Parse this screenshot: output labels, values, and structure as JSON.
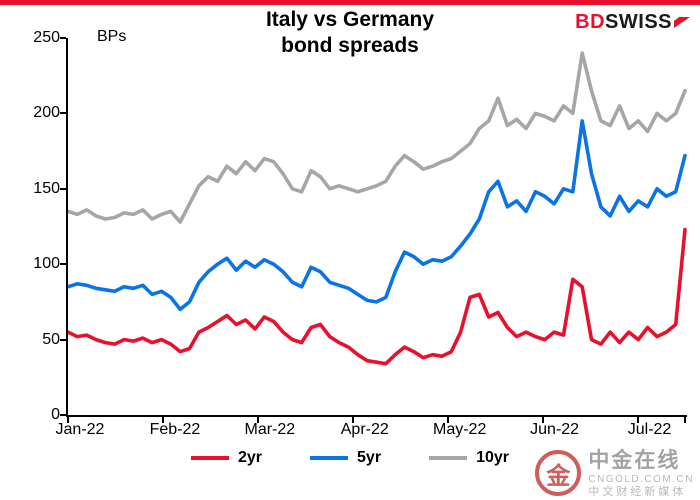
{
  "header": {
    "bps_label": "BPs",
    "title_line1": "Italy vs Germany",
    "title_line2": "bond spreads",
    "logo": {
      "bd": "BD",
      "swiss": "SWISS",
      "arrow_color": "#e8112d"
    }
  },
  "chart_data": {
    "type": "line",
    "title": "Italy vs Germany bond spreads",
    "ylabel": "BPs",
    "xlabel": "",
    "ylim": [
      0,
      250
    ],
    "ytick_step": 50,
    "grid": false,
    "legend_position": "bottom",
    "categories": [
      "Jan-22",
      "Feb-22",
      "Mar-22",
      "Apr-22",
      "May-22",
      "Jun-22",
      "Jul-22"
    ],
    "months_span": 6.5,
    "series": [
      {
        "name": "2yr",
        "color": "#e8112d",
        "values": [
          55,
          52,
          53,
          50,
          48,
          47,
          50,
          49,
          51,
          48,
          50,
          47,
          42,
          44,
          55,
          58,
          62,
          66,
          60,
          63,
          57,
          65,
          62,
          55,
          50,
          48,
          58,
          60,
          52,
          48,
          45,
          40,
          36,
          35,
          34,
          40,
          45,
          42,
          38,
          40,
          39,
          42,
          55,
          78,
          80,
          65,
          68,
          58,
          52,
          55,
          52,
          50,
          55,
          53,
          90,
          85,
          50,
          47,
          55,
          48,
          55,
          50,
          58,
          52,
          55,
          60,
          123
        ]
      },
      {
        "name": "5yr",
        "color": "#0a73e8",
        "values": [
          85,
          87,
          86,
          84,
          83,
          82,
          85,
          84,
          86,
          80,
          82,
          78,
          70,
          75,
          88,
          95,
          100,
          104,
          96,
          102,
          98,
          103,
          100,
          95,
          88,
          85,
          98,
          95,
          88,
          86,
          84,
          80,
          76,
          75,
          78,
          95,
          108,
          105,
          100,
          103,
          102,
          105,
          112,
          120,
          130,
          148,
          155,
          138,
          142,
          135,
          148,
          145,
          140,
          150,
          148,
          195,
          160,
          138,
          132,
          145,
          135,
          142,
          138,
          150,
          145,
          148,
          172
        ]
      },
      {
        "name": "10yr",
        "color": "#a6a6a6",
        "values": [
          135,
          133,
          136,
          132,
          130,
          131,
          134,
          133,
          136,
          130,
          133,
          135,
          128,
          140,
          152,
          158,
          155,
          165,
          160,
          168,
          162,
          170,
          168,
          160,
          150,
          148,
          162,
          158,
          150,
          152,
          150,
          148,
          150,
          152,
          155,
          165,
          172,
          168,
          163,
          165,
          168,
          170,
          175,
          180,
          190,
          195,
          210,
          192,
          196,
          190,
          200,
          198,
          195,
          205,
          200,
          240,
          215,
          195,
          192,
          205,
          190,
          195,
          188,
          200,
          195,
          200,
          215
        ]
      }
    ]
  },
  "watermark": {
    "site_name": "中金在线",
    "domain": "CNGOLD.COM.CN",
    "tagline": "中文财经新媒体",
    "logo_char": "金"
  }
}
